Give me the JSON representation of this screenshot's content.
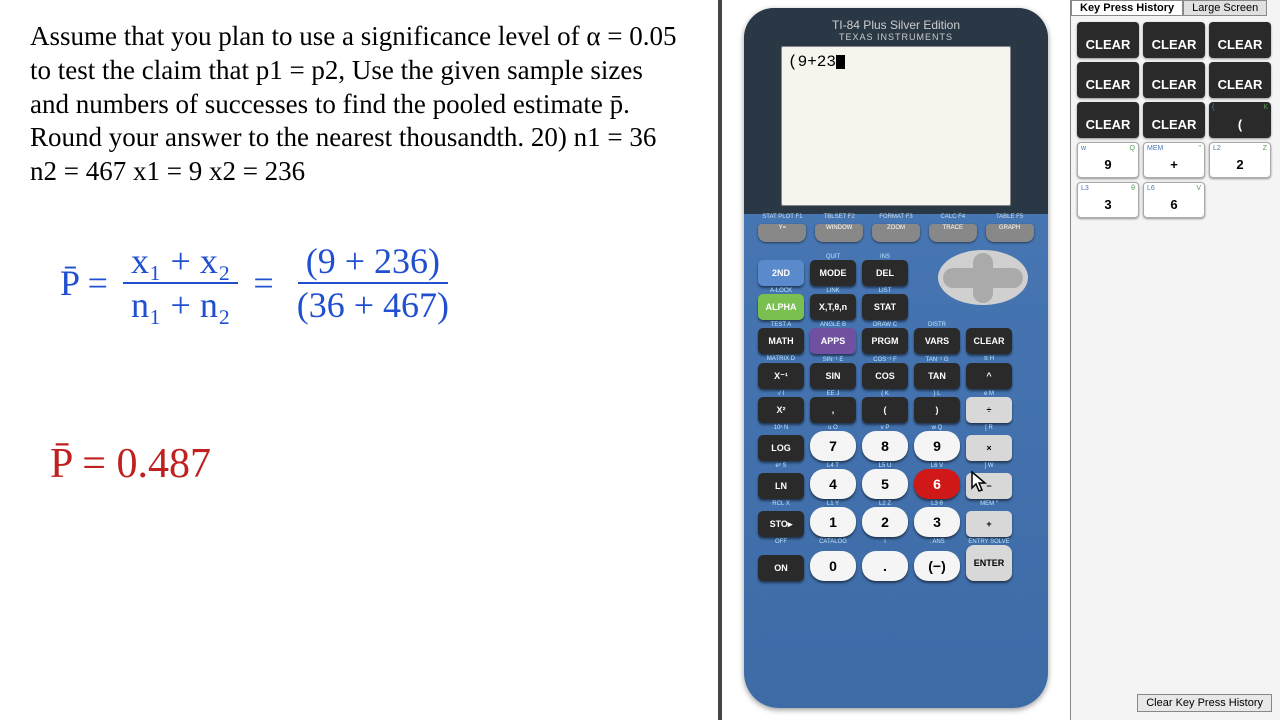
{
  "problem": {
    "text": "Assume that you plan to use a significance level of α = 0.05 to test the claim that p1 = p2, Use the given sample sizes and numbers of successes to find the pooled estimate p̄. Round your answer to the nearest thousandth. 20) n1 = 36  n2 = 467  x1 = 9  x2 = 236"
  },
  "handwritten": {
    "lhs": "P̄ =",
    "num1": "x₁ + x₂",
    "den1": "n₁ + n₂",
    "eq": "=",
    "num2": "(9 + 236)",
    "den2": "(36 + 467)",
    "result": "P̄ = 0.487"
  },
  "calculator": {
    "model": "TI-84 Plus Silver Edition",
    "brand": "TEXAS INSTRUMENTS",
    "display": "(9+23",
    "fn_labels": [
      "STAT PLOT F1",
      "TBLSET F2",
      "FORMAT F3",
      "CALC F4",
      "TABLE F5"
    ],
    "fn_keys": [
      "Y=",
      "WINDOW",
      "ZOOM",
      "TRACE",
      "GRAPH"
    ],
    "rows": [
      {
        "labels": [
          "",
          "QUIT",
          "INS"
        ],
        "keys": [
          {
            "t": "2ND",
            "c": "blue"
          },
          {
            "t": "MODE",
            "c": "dark"
          },
          {
            "t": "DEL",
            "c": "dark"
          }
        ]
      },
      {
        "labels": [
          "A-LOCK",
          "LINK",
          "LIST"
        ],
        "keys": [
          {
            "t": "ALPHA",
            "c": "green"
          },
          {
            "t": "X,T,θ,n",
            "c": "dark"
          },
          {
            "t": "STAT",
            "c": "dark"
          }
        ]
      },
      {
        "labels": [
          "TEST A",
          "ANGLE B",
          "DRAW C",
          "DISTR",
          ""
        ],
        "keys": [
          {
            "t": "MATH",
            "c": "dark"
          },
          {
            "t": "APPS",
            "c": "purple"
          },
          {
            "t": "PRGM",
            "c": "dark"
          },
          {
            "t": "VARS",
            "c": "dark"
          },
          {
            "t": "CLEAR",
            "c": "dark"
          }
        ]
      },
      {
        "labels": [
          "MATRIX D",
          "SIN⁻¹ E",
          "COS⁻¹ F",
          "TAN⁻¹ G",
          "π H"
        ],
        "keys": [
          {
            "t": "X⁻¹",
            "c": "dark"
          },
          {
            "t": "SIN",
            "c": "dark"
          },
          {
            "t": "COS",
            "c": "dark"
          },
          {
            "t": "TAN",
            "c": "dark"
          },
          {
            "t": "^",
            "c": "dark"
          }
        ]
      },
      {
        "labels": [
          "√ I",
          "EE J",
          "{ K",
          "} L",
          "e M"
        ],
        "keys": [
          {
            "t": "X²",
            "c": "dark"
          },
          {
            "t": ",",
            "c": "dark"
          },
          {
            "t": "(",
            "c": "dark"
          },
          {
            "t": ")",
            "c": "dark"
          },
          {
            "t": "÷",
            "c": "gray"
          }
        ]
      },
      {
        "labels": [
          "10ˣ N",
          "u O",
          "v P",
          "w Q",
          "[ R"
        ],
        "keys": [
          {
            "t": "LOG",
            "c": "dark"
          },
          {
            "t": "7",
            "c": "white"
          },
          {
            "t": "8",
            "c": "white"
          },
          {
            "t": "9",
            "c": "white"
          },
          {
            "t": "×",
            "c": "gray"
          }
        ]
      },
      {
        "labels": [
          "eˣ S",
          "L4 T",
          "L5 U",
          "L6 V",
          "] W"
        ],
        "keys": [
          {
            "t": "LN",
            "c": "dark"
          },
          {
            "t": "4",
            "c": "white"
          },
          {
            "t": "5",
            "c": "white"
          },
          {
            "t": "6",
            "c": "red"
          },
          {
            "t": "−",
            "c": "gray"
          }
        ]
      },
      {
        "labels": [
          "RCL X",
          "L1 Y",
          "L2 Z",
          "L3 θ",
          "MEM \""
        ],
        "keys": [
          {
            "t": "STO▸",
            "c": "dark"
          },
          {
            "t": "1",
            "c": "white"
          },
          {
            "t": "2",
            "c": "white"
          },
          {
            "t": "3",
            "c": "white"
          },
          {
            "t": "+",
            "c": "gray"
          }
        ]
      },
      {
        "labels": [
          "OFF",
          "CATALOG",
          "i",
          ": ANS",
          "ENTRY SOLVE"
        ],
        "keys": [
          {
            "t": "ON",
            "c": "dark"
          },
          {
            "t": "0",
            "c": "white"
          },
          {
            "t": ".",
            "c": "white"
          },
          {
            "t": "(−)",
            "c": "white"
          },
          {
            "t": "ENTER",
            "c": "gray"
          }
        ]
      }
    ]
  },
  "history": {
    "tab_active": "Key Press History",
    "tab_other": "Large Screen",
    "keys": [
      {
        "t": "CLEAR",
        "c": "dark"
      },
      {
        "t": "CLEAR",
        "c": "dark"
      },
      {
        "t": "CLEAR",
        "c": "dark"
      },
      {
        "t": "CLEAR",
        "c": "dark"
      },
      {
        "t": "CLEAR",
        "c": "dark"
      },
      {
        "t": "CLEAR",
        "c": "dark"
      },
      {
        "t": "CLEAR",
        "c": "dark"
      },
      {
        "t": "CLEAR",
        "c": "dark"
      },
      {
        "t": "(",
        "c": "dark",
        "tl": "{",
        "tr": "K"
      },
      {
        "t": "9",
        "c": "white",
        "tl": "w",
        "tr": "Q"
      },
      {
        "t": "+",
        "c": "white",
        "tl": "MEM",
        "tr": "\""
      },
      {
        "t": "2",
        "c": "white",
        "tl": "L2",
        "tr": "Z"
      },
      {
        "t": "3",
        "c": "white",
        "tl": "L3",
        "tr": "θ"
      },
      {
        "t": "6",
        "c": "white",
        "tl": "L6",
        "tr": "V"
      }
    ],
    "clear_button": "Clear Key Press History"
  }
}
